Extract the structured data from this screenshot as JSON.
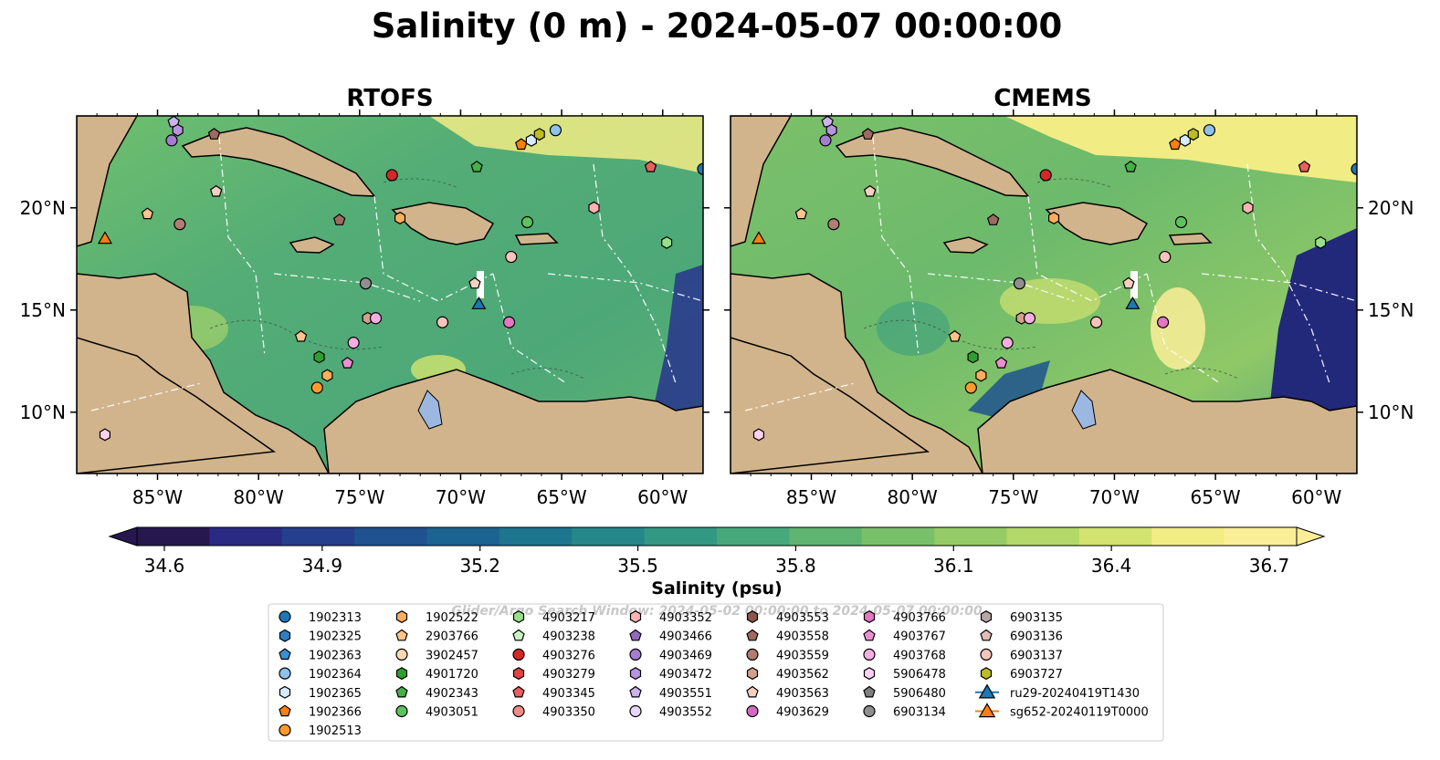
{
  "figure": {
    "title": "Salinity (0 m) - 2024-05-07 00:00:00",
    "watermark": "Glider/Argo Search Window: 2024-05-02 00:00:00 to 2024-05-07 00:00:00"
  },
  "panels": [
    {
      "title": "RTOFS"
    },
    {
      "title": "CMEMS"
    }
  ],
  "axes": {
    "x_ticks": [
      "85°W",
      "80°W",
      "75°W",
      "70°W",
      "65°W",
      "60°W"
    ],
    "y_ticks": [
      "20°N",
      "15°N",
      "10°N"
    ],
    "lon_range": [
      -89,
      -58
    ],
    "lat_range": [
      7,
      24.5
    ]
  },
  "colorbar": {
    "label": "Salinity (psu)",
    "ticks": [
      "34.6",
      "34.9",
      "35.2",
      "35.5",
      "35.8",
      "36.1",
      "36.4",
      "36.7"
    ],
    "range": [
      34.6,
      36.7
    ],
    "colors": [
      "#26184f",
      "#2a2a82",
      "#243f8c",
      "#1f528e",
      "#1b6390",
      "#1e758e",
      "#25878a",
      "#329883",
      "#47a97b",
      "#5fb471",
      "#79c06a",
      "#95cb66",
      "#b4d869",
      "#d3e370",
      "#f2ec85",
      "#fbee99"
    ]
  },
  "legend": {
    "columns": [
      [
        {
          "label": "1902313",
          "shape": "circle",
          "color": "#1f77b4"
        },
        {
          "label": "1902325",
          "shape": "hexagon",
          "color": "#2f7fc0"
        },
        {
          "label": "1902363",
          "shape": "pentagon",
          "color": "#3a8fd1"
        },
        {
          "label": "1902364",
          "shape": "circle",
          "color": "#8fc2ea"
        },
        {
          "label": "1902365",
          "shape": "hexagon",
          "color": "#d6ecff"
        },
        {
          "label": "1902366",
          "shape": "pentagon",
          "color": "#ff7f0e"
        },
        {
          "label": "1902513",
          "shape": "circle",
          "color": "#ff9a2e"
        }
      ],
      [
        {
          "label": "1902522",
          "shape": "hexagon",
          "color": "#ffae5c"
        },
        {
          "label": "2903766",
          "shape": "pentagon",
          "color": "#ffc48a"
        },
        {
          "label": "3902457",
          "shape": "circle",
          "color": "#ffd9b0"
        },
        {
          "label": "4901720",
          "shape": "hexagon",
          "color": "#2ca02c"
        },
        {
          "label": "4902343",
          "shape": "pentagon",
          "color": "#45b045"
        },
        {
          "label": "4903051",
          "shape": "circle",
          "color": "#5ec25e"
        }
      ],
      [
        {
          "label": "4903217",
          "shape": "hexagon",
          "color": "#98df8a"
        },
        {
          "label": "4903238",
          "shape": "pentagon",
          "color": "#c8f2bf"
        },
        {
          "label": "4903276",
          "shape": "circle",
          "color": "#d62728"
        },
        {
          "label": "4903279",
          "shape": "hexagon",
          "color": "#e04545"
        },
        {
          "label": "4903345",
          "shape": "pentagon",
          "color": "#ea6060"
        },
        {
          "label": "4903350",
          "shape": "circle",
          "color": "#f08b8b"
        }
      ],
      [
        {
          "label": "4903352",
          "shape": "hexagon",
          "color": "#ffb3b3"
        },
        {
          "label": "4903466",
          "shape": "pentagon",
          "color": "#9467bd"
        },
        {
          "label": "4903469",
          "shape": "circle",
          "color": "#a57cd0"
        },
        {
          "label": "4903472",
          "shape": "hexagon",
          "color": "#b894e0"
        },
        {
          "label": "4903551",
          "shape": "pentagon",
          "color": "#cdb3ee"
        },
        {
          "label": "4903552",
          "shape": "circle",
          "color": "#e6d6f8"
        }
      ],
      [
        {
          "label": "4903553",
          "shape": "hexagon",
          "color": "#8c564b"
        },
        {
          "label": "4903558",
          "shape": "pentagon",
          "color": "#9c6a5e"
        },
        {
          "label": "4903559",
          "shape": "circle",
          "color": "#b07d70"
        },
        {
          "label": "4903562",
          "shape": "hexagon",
          "color": "#d4a08e"
        },
        {
          "label": "4903563",
          "shape": "pentagon",
          "color": "#f5cfc0"
        },
        {
          "label": "4903629",
          "shape": "circle",
          "color": "#d16bc2"
        }
      ],
      [
        {
          "label": "4903766",
          "shape": "hexagon",
          "color": "#e377c2"
        },
        {
          "label": "4903767",
          "shape": "pentagon",
          "color": "#ec8fd2"
        },
        {
          "label": "4903768",
          "shape": "circle",
          "color": "#f4aee0"
        },
        {
          "label": "5906478",
          "shape": "hexagon",
          "color": "#fbd2ef"
        },
        {
          "label": "5906480",
          "shape": "pentagon",
          "color": "#7f7f7f"
        },
        {
          "label": "6903134",
          "shape": "circle",
          "color": "#8f8f8f"
        }
      ],
      [
        {
          "label": "6903135",
          "shape": "hexagon",
          "color": "#b6a6a6"
        },
        {
          "label": "6903136",
          "shape": "pentagon",
          "color": "#e0bdb5"
        },
        {
          "label": "6903137",
          "shape": "circle",
          "color": "#f6c4bd"
        },
        {
          "label": "6903727",
          "shape": "hexagon",
          "color": "#bcbd22"
        },
        {
          "label": "ru29-20240419T1430",
          "shape": "triangle-line",
          "color": "#1f77b4"
        },
        {
          "label": "sg652-20240119T0000",
          "shape": "triangle-line",
          "color": "#ff7f0e"
        }
      ]
    ]
  },
  "markers": [
    {
      "lon": -84.2,
      "lat": 24.2,
      "shape": "pentagon",
      "color": "#cdb3ee"
    },
    {
      "lon": -84.0,
      "lat": 23.8,
      "shape": "hexagon",
      "color": "#b894e0"
    },
    {
      "lon": -84.3,
      "lat": 23.3,
      "shape": "circle",
      "color": "#a57cd0"
    },
    {
      "lon": -82.2,
      "lat": 23.6,
      "shape": "pentagon",
      "color": "#9c6a5e"
    },
    {
      "lon": -73.4,
      "lat": 21.6,
      "shape": "circle",
      "color": "#d62728"
    },
    {
      "lon": -69.2,
      "lat": 22.0,
      "shape": "pentagon",
      "color": "#45b045"
    },
    {
      "lon": -67.0,
      "lat": 23.1,
      "shape": "pentagon",
      "color": "#ff7f0e"
    },
    {
      "lon": -66.5,
      "lat": 23.3,
      "shape": "hexagon",
      "color": "#d6ecff"
    },
    {
      "lon": -66.1,
      "lat": 23.6,
      "shape": "hexagon",
      "color": "#bcbd22"
    },
    {
      "lon": -65.3,
      "lat": 23.8,
      "shape": "circle",
      "color": "#8fc2ea"
    },
    {
      "lon": -60.6,
      "lat": 22.0,
      "shape": "pentagon",
      "color": "#ea6060"
    },
    {
      "lon": -58.0,
      "lat": 21.9,
      "shape": "circle",
      "color": "#1f77b4"
    },
    {
      "lon": -82.1,
      "lat": 20.8,
      "shape": "pentagon",
      "color": "#f5cfc0"
    },
    {
      "lon": -85.5,
      "lat": 19.7,
      "shape": "pentagon",
      "color": "#ffc48a"
    },
    {
      "lon": -83.9,
      "lat": 19.2,
      "shape": "circle",
      "color": "#b07d70"
    },
    {
      "lon": -76.0,
      "lat": 19.4,
      "shape": "pentagon",
      "color": "#9c6a5e"
    },
    {
      "lon": -73.0,
      "lat": 19.5,
      "shape": "hexagon",
      "color": "#ffae5c"
    },
    {
      "lon": -66.7,
      "lat": 19.3,
      "shape": "circle",
      "color": "#5ec25e"
    },
    {
      "lon": -63.4,
      "lat": 20.0,
      "shape": "hexagon",
      "color": "#ffb3b3"
    },
    {
      "lon": -59.8,
      "lat": 18.3,
      "shape": "hexagon",
      "color": "#98df8a"
    },
    {
      "lon": -87.6,
      "lat": 18.5,
      "shape": "triangle",
      "color": "#ff7f0e"
    },
    {
      "lon": -67.5,
      "lat": 17.6,
      "shape": "circle",
      "color": "#f6c4bd"
    },
    {
      "lon": -74.7,
      "lat": 16.3,
      "shape": "circle",
      "color": "#8f8f8f"
    },
    {
      "lon": -69.3,
      "lat": 16.3,
      "shape": "pentagon",
      "color": "#f5cfc0"
    },
    {
      "lon": -69.1,
      "lat": 15.3,
      "shape": "triangle",
      "color": "#1f77b4"
    },
    {
      "lon": -74.6,
      "lat": 14.6,
      "shape": "hexagon",
      "color": "#d4a08e"
    },
    {
      "lon": -74.2,
      "lat": 14.6,
      "shape": "circle",
      "color": "#f4aee0"
    },
    {
      "lon": -70.9,
      "lat": 14.4,
      "shape": "circle",
      "color": "#f6c4bd"
    },
    {
      "lon": -67.6,
      "lat": 14.4,
      "shape": "circle",
      "color": "#e377c2"
    },
    {
      "lon": -77.9,
      "lat": 13.7,
      "shape": "pentagon",
      "color": "#ffc48a"
    },
    {
      "lon": -75.3,
      "lat": 13.4,
      "shape": "circle",
      "color": "#f4aee0"
    },
    {
      "lon": -77.0,
      "lat": 12.7,
      "shape": "hexagon",
      "color": "#2ca02c"
    },
    {
      "lon": -75.6,
      "lat": 12.4,
      "shape": "pentagon",
      "color": "#ec8fd2"
    },
    {
      "lon": -76.6,
      "lat": 11.8,
      "shape": "hexagon",
      "color": "#ffae5c"
    },
    {
      "lon": -77.1,
      "lat": 11.2,
      "shape": "circle",
      "color": "#ff9a2e"
    },
    {
      "lon": -87.6,
      "lat": 8.9,
      "shape": "hexagon",
      "color": "#fbd2ef"
    }
  ]
}
